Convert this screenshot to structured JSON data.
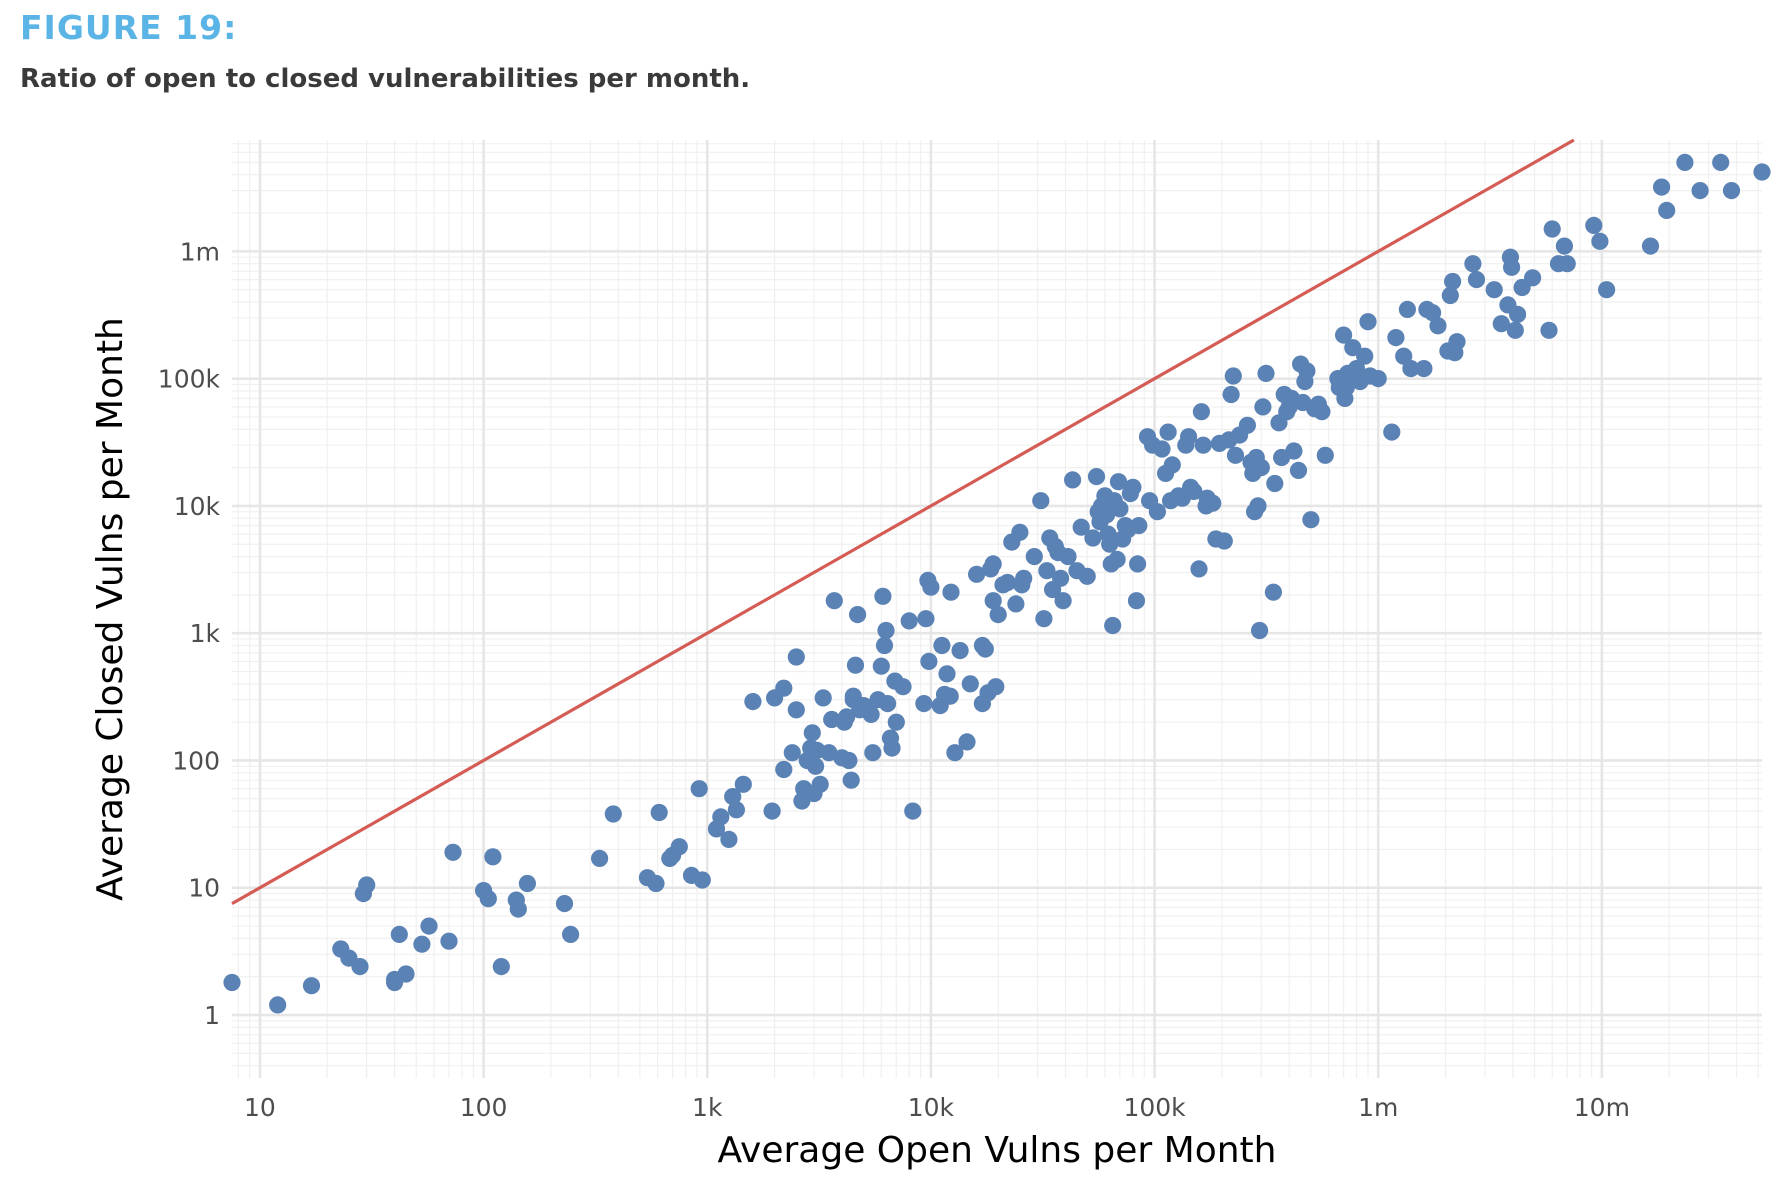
{
  "figure_label": "FIGURE 19:",
  "caption": "Ratio of open to closed vulnerabilities per month.",
  "chart_data": {
    "type": "scatter",
    "xlabel": "Average Open Vulns per Month",
    "ylabel": "Average Closed Vulns per Month",
    "x_scale": "log",
    "y_scale": "log",
    "xlim": [
      7.5,
      52000000
    ],
    "ylim": [
      0.32,
      7500000
    ],
    "x_ticks": [
      {
        "value": 10,
        "label": "10"
      },
      {
        "value": 100,
        "label": "100"
      },
      {
        "value": 1000,
        "label": "1k"
      },
      {
        "value": 10000,
        "label": "10k"
      },
      {
        "value": 100000,
        "label": "100k"
      },
      {
        "value": 1000000,
        "label": "1m"
      },
      {
        "value": 10000000,
        "label": "10m"
      }
    ],
    "y_ticks": [
      {
        "value": 1,
        "label": "1"
      },
      {
        "value": 10,
        "label": "10"
      },
      {
        "value": 100,
        "label": "100"
      },
      {
        "value": 1000,
        "label": "1k"
      },
      {
        "value": 10000,
        "label": "10k"
      },
      {
        "value": 100000,
        "label": "100k"
      },
      {
        "value": 1000000,
        "label": "1m"
      }
    ],
    "grid": true,
    "point_color": "#5b82b4",
    "line_color": "#d45c55",
    "reference_line": {
      "type": "y=x"
    },
    "points": [
      [
        7.5,
        1.8
      ],
      [
        12,
        1.2
      ],
      [
        17,
        1.7
      ],
      [
        23,
        3.3
      ],
      [
        25,
        2.8
      ],
      [
        28,
        2.4
      ],
      [
        29,
        9
      ],
      [
        30,
        10.5
      ],
      [
        40,
        1.8
      ],
      [
        40,
        1.9
      ],
      [
        42,
        4.3
      ],
      [
        45,
        2.1
      ],
      [
        53,
        3.6
      ],
      [
        57,
        5.0
      ],
      [
        70,
        3.8
      ],
      [
        73,
        19
      ],
      [
        100,
        9.5
      ],
      [
        105,
        8.2
      ],
      [
        110,
        17.5
      ],
      [
        120,
        2.4
      ],
      [
        140,
        8.0
      ],
      [
        143,
        6.8
      ],
      [
        157,
        10.8
      ],
      [
        230,
        7.5
      ],
      [
        245,
        4.3
      ],
      [
        330,
        17
      ],
      [
        380,
        38
      ],
      [
        540,
        12
      ],
      [
        590,
        10.8
      ],
      [
        610,
        39
      ],
      [
        680,
        17
      ],
      [
        700,
        18
      ],
      [
        750,
        21
      ],
      [
        850,
        12.5
      ],
      [
        950,
        11.5
      ],
      [
        920,
        60
      ],
      [
        1100,
        29
      ],
      [
        1150,
        36
      ],
      [
        1250,
        24
      ],
      [
        1300,
        52
      ],
      [
        1350,
        41
      ],
      [
        1450,
        65
      ],
      [
        1600,
        290
      ],
      [
        1950,
        40
      ],
      [
        2000,
        310
      ],
      [
        2200,
        370
      ],
      [
        2200,
        85
      ],
      [
        2400,
        115
      ],
      [
        2500,
        650
      ],
      [
        2500,
        250
      ],
      [
        2650,
        48
      ],
      [
        2700,
        60
      ],
      [
        2800,
        100
      ],
      [
        2900,
        125
      ],
      [
        2950,
        165
      ],
      [
        3000,
        55
      ],
      [
        3050,
        90
      ],
      [
        3100,
        120
      ],
      [
        3200,
        65
      ],
      [
        3300,
        310
      ],
      [
        3500,
        115
      ],
      [
        3600,
        210
      ],
      [
        3700,
        1800
      ],
      [
        4000,
        105
      ],
      [
        4100,
        200
      ],
      [
        4200,
        220
      ],
      [
        4300,
        100
      ],
      [
        4400,
        70
      ],
      [
        4500,
        300
      ],
      [
        4500,
        320
      ],
      [
        4600,
        560
      ],
      [
        4700,
        1400
      ],
      [
        4800,
        250
      ],
      [
        5000,
        270
      ],
      [
        5400,
        230
      ],
      [
        5500,
        115
      ],
      [
        5800,
        300
      ],
      [
        6000,
        550
      ],
      [
        6100,
        1950
      ],
      [
        6200,
        800
      ],
      [
        6300,
        1050
      ],
      [
        6400,
        280
      ],
      [
        6600,
        150
      ],
      [
        6700,
        125
      ],
      [
        6900,
        420
      ],
      [
        7000,
        200
      ],
      [
        7500,
        380
      ],
      [
        8000,
        1250
      ],
      [
        8300,
        40
      ],
      [
        9300,
        280
      ],
      [
        9500,
        1300
      ],
      [
        9700,
        2600
      ],
      [
        9800,
        600
      ],
      [
        10000,
        2300
      ],
      [
        11000,
        270
      ],
      [
        11200,
        800
      ],
      [
        11500,
        330
      ],
      [
        11800,
        480
      ],
      [
        12200,
        320
      ],
      [
        12300,
        2100
      ],
      [
        12800,
        115
      ],
      [
        13500,
        730
      ],
      [
        14500,
        140
      ],
      [
        15000,
        400
      ],
      [
        16000,
        2900
      ],
      [
        17000,
        280
      ],
      [
        17000,
        800
      ],
      [
        17500,
        750
      ],
      [
        18000,
        340
      ],
      [
        18500,
        3200
      ],
      [
        19000,
        1800
      ],
      [
        19000,
        3500
      ],
      [
        19500,
        380
      ],
      [
        20000,
        1400
      ],
      [
        21000,
        2400
      ],
      [
        22000,
        2500
      ],
      [
        23000,
        5200
      ],
      [
        24000,
        1700
      ],
      [
        25000,
        6200
      ],
      [
        25500,
        2400
      ],
      [
        26000,
        2700
      ],
      [
        29000,
        4000
      ],
      [
        31000,
        11000
      ],
      [
        32000,
        1300
      ],
      [
        33000,
        3100
      ],
      [
        34000,
        5600
      ],
      [
        35000,
        2200
      ],
      [
        36000,
        4800
      ],
      [
        37000,
        4300
      ],
      [
        38000,
        2700
      ],
      [
        39000,
        1800
      ],
      [
        41000,
        4000
      ],
      [
        43000,
        16000
      ],
      [
        45000,
        3100
      ],
      [
        47000,
        6800
      ],
      [
        50000,
        2800
      ],
      [
        53000,
        5600
      ],
      [
        55000,
        17000
      ],
      [
        56000,
        9000
      ],
      [
        57000,
        7500
      ],
      [
        58000,
        10000
      ],
      [
        60000,
        12000
      ],
      [
        61000,
        8500
      ],
      [
        62000,
        6000
      ],
      [
        63000,
        5000
      ],
      [
        64000,
        3500
      ],
      [
        65000,
        1150
      ],
      [
        66000,
        11000
      ],
      [
        68000,
        3800
      ],
      [
        69000,
        15500
      ],
      [
        70000,
        9500
      ],
      [
        72000,
        5500
      ],
      [
        74000,
        7000
      ],
      [
        76000,
        6500
      ],
      [
        78000,
        12500
      ],
      [
        80000,
        14000
      ],
      [
        83000,
        1800
      ],
      [
        84000,
        3500
      ],
      [
        85000,
        7000
      ],
      [
        93000,
        35000
      ],
      [
        95000,
        11000
      ],
      [
        98000,
        30000
      ],
      [
        103000,
        9000
      ],
      [
        108000,
        28000
      ],
      [
        112000,
        18000
      ],
      [
        115000,
        38000
      ],
      [
        118000,
        11000
      ],
      [
        120000,
        21000
      ],
      [
        128000,
        12000
      ],
      [
        133000,
        11500
      ],
      [
        138000,
        30000
      ],
      [
        142000,
        35000
      ],
      [
        145000,
        14000
      ],
      [
        150000,
        13000
      ],
      [
        158000,
        3200
      ],
      [
        162000,
        55000
      ],
      [
        165000,
        30000
      ],
      [
        170000,
        10000
      ],
      [
        172000,
        11500
      ],
      [
        182000,
        10500
      ],
      [
        188000,
        5500
      ],
      [
        195000,
        31000
      ],
      [
        205000,
        5300
      ],
      [
        215000,
        33000
      ],
      [
        220000,
        75000
      ],
      [
        225000,
        105000
      ],
      [
        230000,
        25000
      ],
      [
        240000,
        36000
      ],
      [
        260000,
        43000
      ],
      [
        270000,
        22000
      ],
      [
        275000,
        18000
      ],
      [
        280000,
        9000
      ],
      [
        285000,
        24000
      ],
      [
        290000,
        10000
      ],
      [
        295000,
        1050
      ],
      [
        300000,
        20000
      ],
      [
        305000,
        60000
      ],
      [
        315000,
        110000
      ],
      [
        340000,
        2100
      ],
      [
        345000,
        15000
      ],
      [
        360000,
        45000
      ],
      [
        370000,
        24000
      ],
      [
        380000,
        75000
      ],
      [
        390000,
        55000
      ],
      [
        400000,
        60000
      ],
      [
        410000,
        70000
      ],
      [
        420000,
        27000
      ],
      [
        440000,
        19000
      ],
      [
        450000,
        130000
      ],
      [
        460000,
        65000
      ],
      [
        470000,
        95000
      ],
      [
        480000,
        115000
      ],
      [
        500000,
        7800
      ],
      [
        520000,
        58000
      ],
      [
        540000,
        63000
      ],
      [
        560000,
        55000
      ],
      [
        580000,
        25000
      ],
      [
        660000,
        100000
      ],
      [
        670000,
        85000
      ],
      [
        700000,
        220000
      ],
      [
        710000,
        70000
      ],
      [
        720000,
        85000
      ],
      [
        730000,
        110000
      ],
      [
        770000,
        175000
      ],
      [
        800000,
        120000
      ],
      [
        830000,
        95000
      ],
      [
        870000,
        150000
      ],
      [
        900000,
        280000
      ],
      [
        920000,
        105000
      ],
      [
        1000000,
        100000
      ],
      [
        1150000,
        38000
      ],
      [
        1200000,
        210000
      ],
      [
        1300000,
        150000
      ],
      [
        1350000,
        350000
      ],
      [
        1400000,
        120000
      ],
      [
        1600000,
        120000
      ],
      [
        1650000,
        350000
      ],
      [
        1750000,
        330000
      ],
      [
        1850000,
        260000
      ],
      [
        2050000,
        165000
      ],
      [
        2100000,
        450000
      ],
      [
        2150000,
        580000
      ],
      [
        2200000,
        160000
      ],
      [
        2250000,
        195000
      ],
      [
        2650000,
        800000
      ],
      [
        2750000,
        600000
      ],
      [
        3300000,
        500000
      ],
      [
        3550000,
        270000
      ],
      [
        3800000,
        380000
      ],
      [
        3900000,
        900000
      ],
      [
        3950000,
        750000
      ],
      [
        4100000,
        240000
      ],
      [
        4200000,
        320000
      ],
      [
        4400000,
        520000
      ],
      [
        4900000,
        620000
      ],
      [
        5800000,
        240000
      ],
      [
        6000000,
        1500000
      ],
      [
        6400000,
        800000
      ],
      [
        6800000,
        1100000
      ],
      [
        7000000,
        800000
      ],
      [
        9200000,
        1600000
      ],
      [
        9800000,
        1200000
      ],
      [
        10500000,
        500000
      ],
      [
        16500000,
        1100000
      ],
      [
        18500000,
        3200000
      ],
      [
        19500000,
        2100000
      ],
      [
        23500000,
        5000000
      ],
      [
        27500000,
        3000000
      ],
      [
        34000000,
        5000000
      ],
      [
        38000000,
        3000000
      ],
      [
        52000000,
        4200000
      ]
    ]
  }
}
